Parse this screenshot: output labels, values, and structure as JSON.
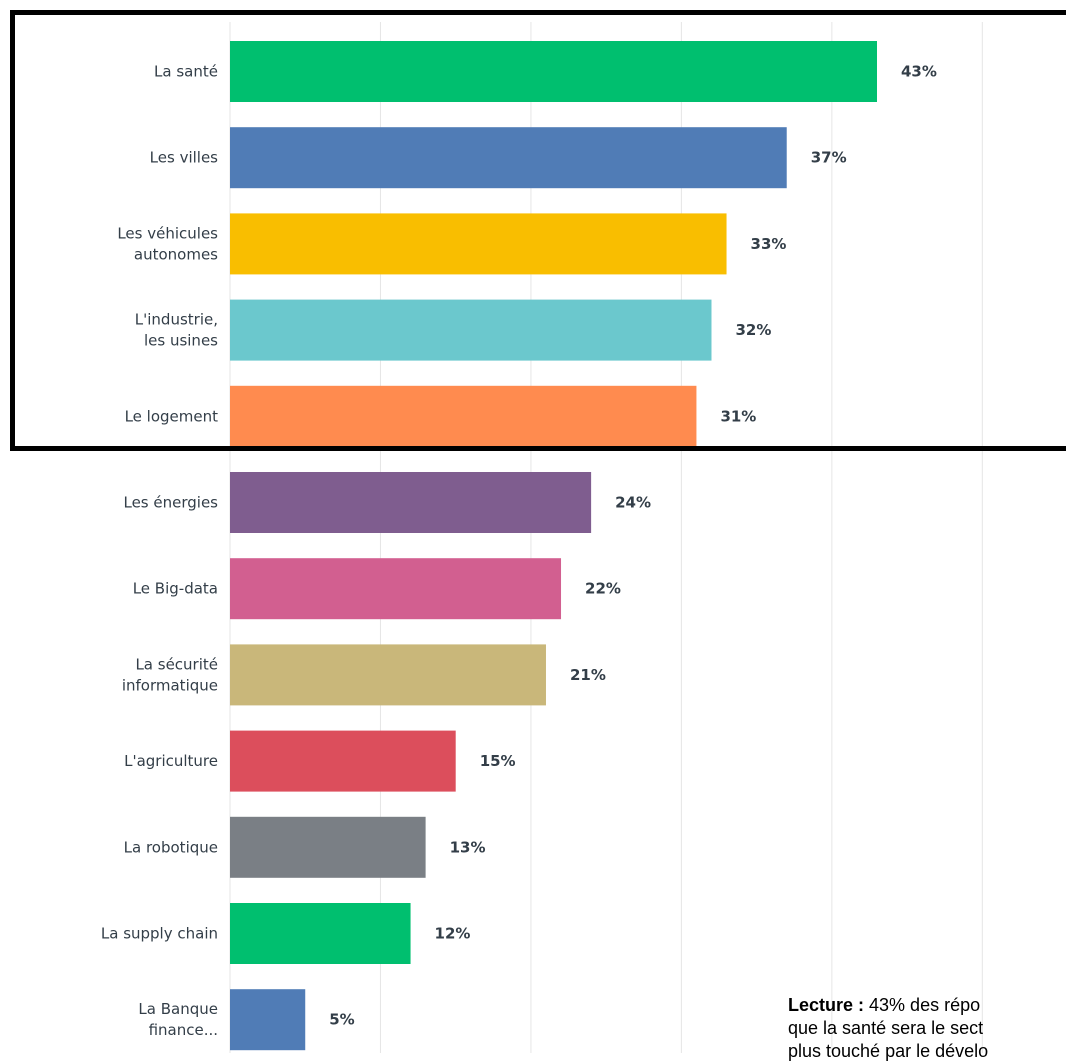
{
  "chart_data": {
    "type": "bar",
    "orientation": "horizontal",
    "categories": [
      [
        "La santé"
      ],
      [
        "Les villes"
      ],
      [
        "Les véhicules",
        "autonomes"
      ],
      [
        "L'industrie,",
        "les usines"
      ],
      [
        "Le logement"
      ],
      [
        "Les énergies"
      ],
      [
        "Le Big-data"
      ],
      [
        "La sécurité",
        "informatique"
      ],
      [
        "L'agriculture"
      ],
      [
        "La robotique"
      ],
      [
        "La supply chain"
      ],
      [
        "La Banque",
        "finance..."
      ]
    ],
    "values": [
      43,
      37,
      33,
      32,
      31,
      24,
      22,
      21,
      15,
      13,
      12,
      5
    ],
    "value_labels": [
      "43%",
      "37%",
      "33%",
      "32%",
      "31%",
      "24%",
      "22%",
      "21%",
      "15%",
      "13%",
      "12%",
      "5%"
    ],
    "colors": [
      "#00bf6f",
      "#507cb6",
      "#f9be00",
      "#6bc8cd",
      "#ff8b4f",
      "#7f5d8f",
      "#d25f90",
      "#c9b77a",
      "#dc4e5c",
      "#7a7f85",
      "#00bf6f",
      "#507cb6"
    ],
    "xlim": [
      0,
      50
    ],
    "grid": true,
    "highlighted_categories": 5
  },
  "note": {
    "label": "Lecture :",
    "line1": " 43% des répo",
    "line2": "que la santé sera le sect",
    "line3": "plus touché par le dévelo"
  }
}
